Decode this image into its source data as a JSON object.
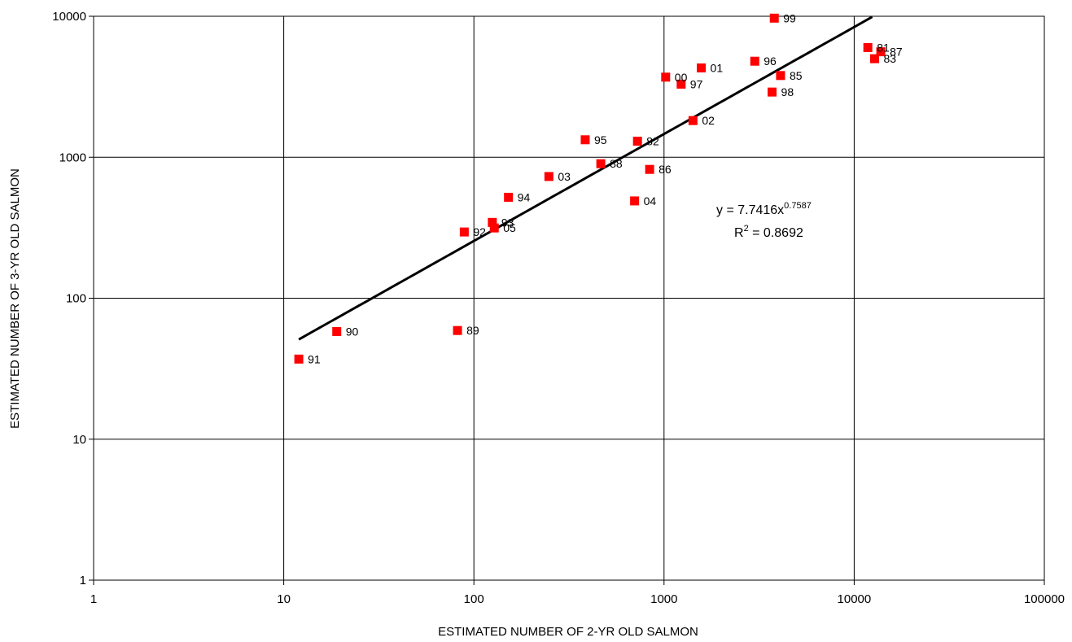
{
  "chart_data": {
    "type": "scatter",
    "x_scale": "log",
    "y_scale": "log",
    "xlim": [
      1,
      100000
    ],
    "ylim": [
      1,
      10000
    ],
    "grid": true,
    "xlabel": "ESTIMATED NUMBER OF 2-YR OLD SALMON",
    "ylabel": "ESTIMATED NUMBER OF 3-YR OLD SALMON",
    "x_ticks": [
      "1",
      "10",
      "100",
      "1000",
      "10000",
      "100000"
    ],
    "y_ticks": [
      "1",
      "10",
      "100",
      "1000",
      "10000"
    ],
    "marker_color": "#ff0000",
    "points": [
      {
        "label": "99",
        "x": 3800,
        "y": 9700
      },
      {
        "label": "81",
        "x": 11800,
        "y": 6000
      },
      {
        "label": "87",
        "x": 13800,
        "y": 5600
      },
      {
        "label": "83",
        "x": 12800,
        "y": 5000
      },
      {
        "label": "96",
        "x": 3000,
        "y": 4800
      },
      {
        "label": "01",
        "x": 1570,
        "y": 4300
      },
      {
        "label": "00",
        "x": 1020,
        "y": 3700
      },
      {
        "label": "85",
        "x": 4100,
        "y": 3800
      },
      {
        "label": "97",
        "x": 1230,
        "y": 3300
      },
      {
        "label": "98",
        "x": 3700,
        "y": 2900
      },
      {
        "label": "02",
        "x": 1420,
        "y": 1820
      },
      {
        "label": "95",
        "x": 385,
        "y": 1330
      },
      {
        "label": "82",
        "x": 725,
        "y": 1300
      },
      {
        "label": "88",
        "x": 465,
        "y": 900
      },
      {
        "label": "86",
        "x": 840,
        "y": 820
      },
      {
        "label": "03",
        "x": 248,
        "y": 730
      },
      {
        "label": "94",
        "x": 152,
        "y": 520
      },
      {
        "label": "04",
        "x": 700,
        "y": 490
      },
      {
        "label": "93",
        "x": 125,
        "y": 345
      },
      {
        "label": "05",
        "x": 128,
        "y": 315
      },
      {
        "label": "92",
        "x": 89,
        "y": 295
      },
      {
        "label": "90",
        "x": 19,
        "y": 58
      },
      {
        "label": "89",
        "x": 82,
        "y": 59
      },
      {
        "label": "91",
        "x": 12,
        "y": 37
      }
    ],
    "trendline": {
      "type": "power",
      "a": 7.7416,
      "b": 0.7587,
      "x_range": [
        12,
        14000
      ],
      "color": "#000000"
    },
    "annotations": {
      "equation_prefix": "y = 7.7416x",
      "equation_exponent": "0.7587",
      "r2_prefix": "R",
      "r2_exponent": "2",
      "r2_value": " = 0.8692"
    }
  }
}
